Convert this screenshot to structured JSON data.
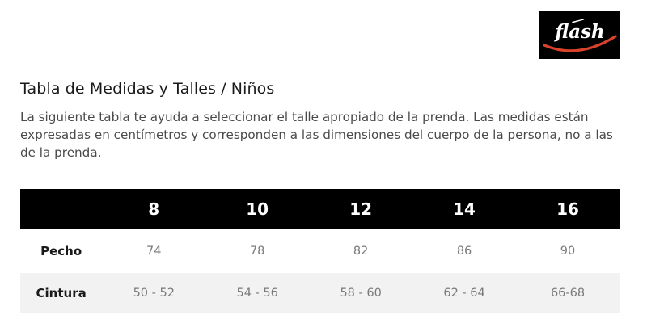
{
  "brand": {
    "logo_text": "flash",
    "colors": {
      "logo_bg": "#000000",
      "logo_text": "#ffffff",
      "logo_swoosh": "#d9432b"
    }
  },
  "heading": {
    "title": "Tabla de Medidas y Talles / Niños",
    "description": "La siguiente tabla te ayuda a seleccionar el talle apropiado de la prenda. Las medidas están expresadas en centímetros y corresponden a las dimensiones del cuerpo de la persona, no a las de la prenda."
  },
  "table": {
    "header_bg": "#000000",
    "alt_row_bg": "#f2f2f2",
    "sizes": [
      "8",
      "10",
      "12",
      "14",
      "16"
    ],
    "rows": [
      {
        "label": "Pecho",
        "values": [
          "74",
          "78",
          "82",
          "86",
          "90"
        ]
      },
      {
        "label": "Cintura",
        "values": [
          "50 - 52",
          "54 - 56",
          "58 - 60",
          "62 - 64",
          "66-68"
        ]
      }
    ]
  }
}
